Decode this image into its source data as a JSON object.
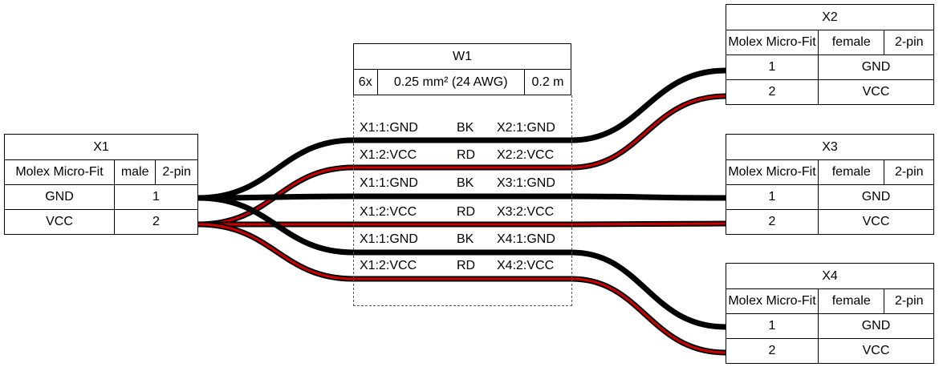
{
  "connectors": {
    "x1": {
      "title": "X1",
      "type": "Molex Micro-Fit",
      "gender": "male",
      "pins_label": "2-pin",
      "rows": [
        {
          "name": "GND",
          "pin": "1"
        },
        {
          "name": "VCC",
          "pin": "2"
        }
      ]
    },
    "x2": {
      "title": "X2",
      "type": "Molex Micro-Fit",
      "gender": "female",
      "pins_label": "2-pin",
      "rows": [
        {
          "pin": "1",
          "name": "GND"
        },
        {
          "pin": "2",
          "name": "VCC"
        }
      ]
    },
    "x3": {
      "title": "X3",
      "type": "Molex Micro-Fit",
      "gender": "female",
      "pins_label": "2-pin",
      "rows": [
        {
          "pin": "1",
          "name": "GND"
        },
        {
          "pin": "2",
          "name": "VCC"
        }
      ]
    },
    "x4": {
      "title": "X4",
      "type": "Molex Micro-Fit",
      "gender": "female",
      "pins_label": "2-pin",
      "rows": [
        {
          "pin": "1",
          "name": "GND"
        },
        {
          "pin": "2",
          "name": "VCC"
        }
      ]
    }
  },
  "cable": {
    "title": "W1",
    "count": "6x",
    "gauge": "0.25 mm² (24 AWG)",
    "length": "0.2 m",
    "wires": [
      {
        "from": "X1:1:GND",
        "color": "BK",
        "to": "X2:1:GND"
      },
      {
        "from": "X1:2:VCC",
        "color": "RD",
        "to": "X2:2:VCC"
      },
      {
        "from": "X1:1:GND",
        "color": "BK",
        "to": "X3:1:GND"
      },
      {
        "from": "X1:2:VCC",
        "color": "RD",
        "to": "X3:2:VCC"
      },
      {
        "from": "X1:1:GND",
        "color": "BK",
        "to": "X4:1:GND"
      },
      {
        "from": "X1:2:VCC",
        "color": "RD",
        "to": "X4:2:VCC"
      }
    ]
  },
  "colors": {
    "black_wire": "#000000",
    "red_wire": "#d00000"
  }
}
